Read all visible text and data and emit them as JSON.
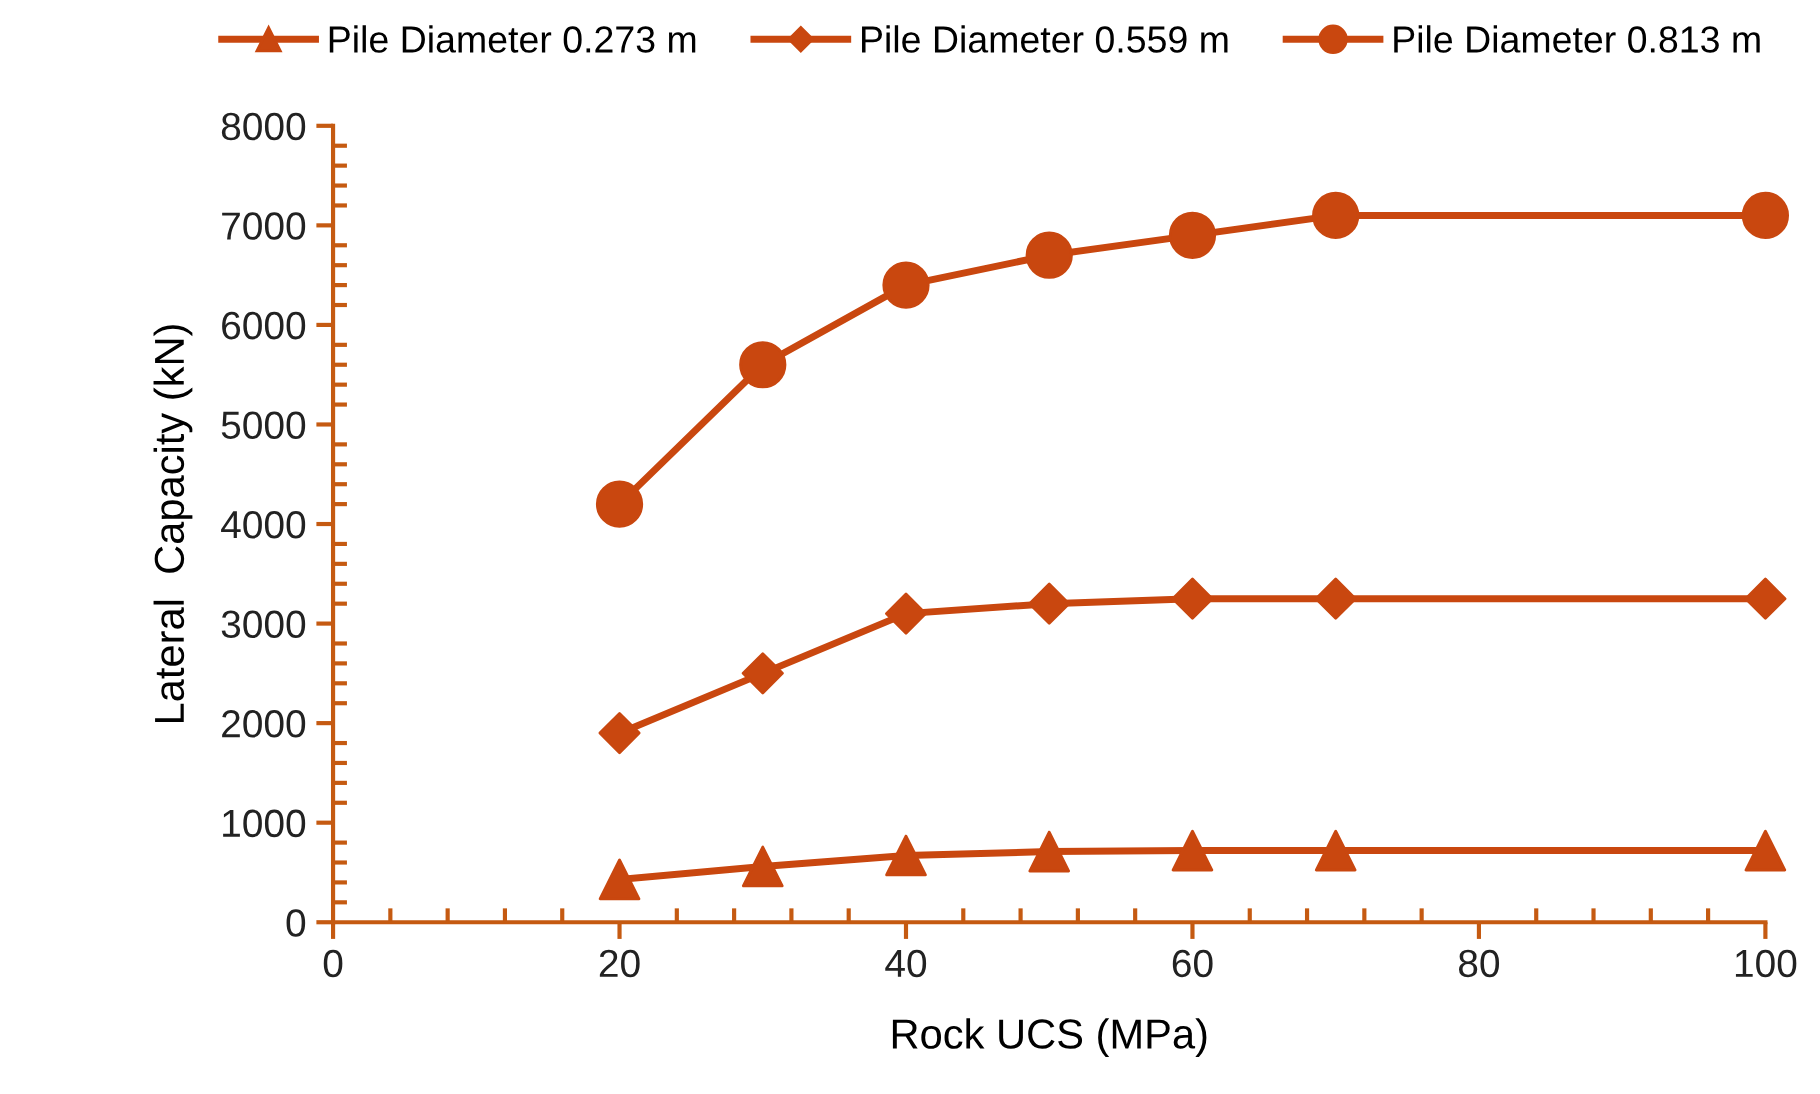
{
  "chart_data": {
    "type": "line",
    "xlabel": "Rock UCS (MPa)",
    "ylabel": "Lateral  Capacity (kN)",
    "x": [
      20,
      30,
      40,
      50,
      60,
      70,
      100
    ],
    "series": [
      {
        "name": "Pile Diameter 0.273 m",
        "color": "#c9470f",
        "marker": "triangle",
        "values": [
          430,
          560,
          670,
          710,
          720,
          720,
          720
        ]
      },
      {
        "name": "Pile Diameter 0.559 m",
        "color": "#c9470f",
        "marker": "diamond",
        "values": [
          1900,
          2500,
          3100,
          3200,
          3250,
          3250,
          3250
        ]
      },
      {
        "name": "Pile Diameter 0.813 m",
        "color": "#c9470f",
        "marker": "circle",
        "values": [
          4200,
          5600,
          6400,
          6700,
          6900,
          7100,
          7100
        ]
      }
    ],
    "xlim": [
      0,
      100
    ],
    "xticks": [
      0,
      20,
      40,
      60,
      80,
      100
    ],
    "ylim": [
      0,
      8000
    ],
    "yticks": [
      0,
      1000,
      2000,
      3000,
      4000,
      5000,
      6000,
      7000,
      8000
    ],
    "grid": false,
    "legend": "top",
    "line_style": "solid"
  }
}
